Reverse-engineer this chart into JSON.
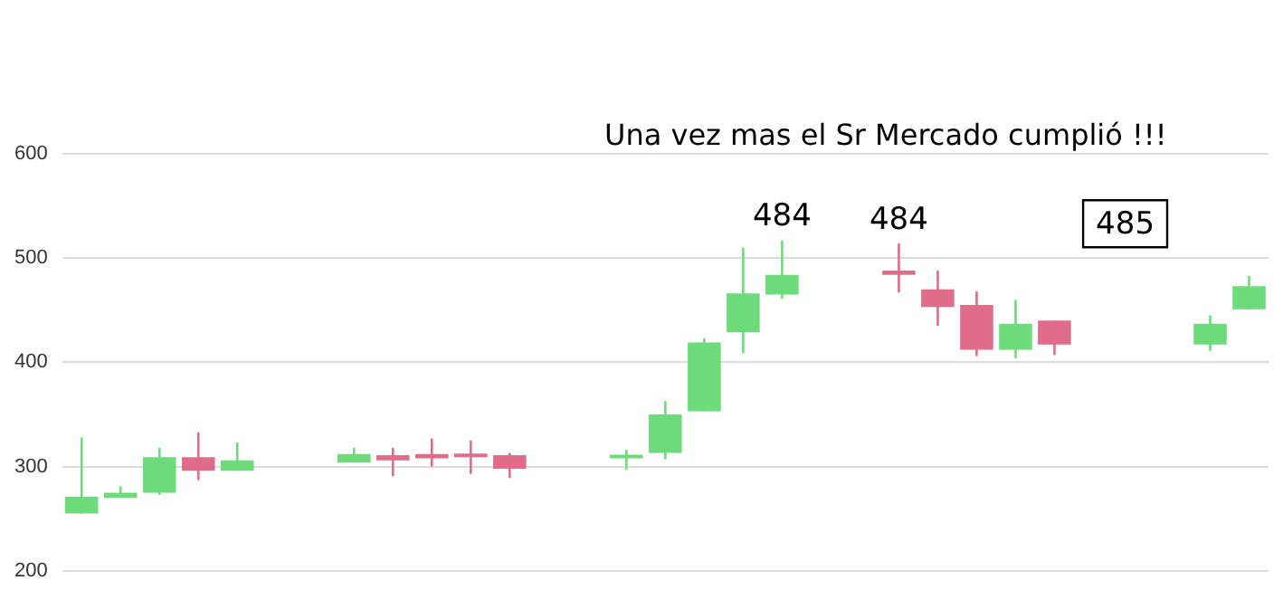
{
  "chart_data": {
    "type": "candlestick",
    "title": "Una vez mas el Sr Mercado cumplió !!!",
    "categories": [
      null,
      null,
      null,
      null,
      null,
      null,
      null,
      null,
      null,
      null,
      null,
      null,
      null,
      null,
      null,
      null,
      null,
      null,
      null,
      null,
      null,
      null,
      null,
      null,
      null,
      null,
      null,
      null,
      null,
      null,
      null
    ],
    "ohlc": [
      [
        255,
        328,
        255,
        271
      ],
      [
        270,
        281,
        270,
        275
      ],
      [
        275,
        318,
        273,
        309
      ],
      [
        309,
        333,
        287,
        296
      ],
      [
        296,
        323,
        296,
        306
      ],
      null,
      null,
      [
        304,
        318,
        304,
        312
      ],
      [
        311,
        318,
        291,
        306
      ],
      [
        312,
        327,
        300,
        308
      ],
      [
        312,
        325,
        293,
        309
      ],
      [
        311,
        313,
        289,
        298
      ],
      null,
      null,
      [
        308,
        316,
        297,
        311
      ],
      [
        313,
        363,
        307,
        350
      ],
      [
        353,
        423,
        353,
        419
      ],
      [
        429,
        510,
        409,
        466
      ],
      [
        465,
        517,
        461,
        484
      ],
      null,
      null,
      [
        488,
        514,
        467,
        484
      ],
      [
        470,
        488,
        435,
        453
      ],
      [
        455,
        468,
        406,
        412
      ],
      [
        412,
        460,
        404,
        437
      ],
      [
        440,
        440,
        407,
        417
      ],
      null,
      null,
      null,
      [
        417,
        445,
        411,
        437
      ],
      [
        451,
        483,
        451,
        473
      ]
    ],
    "colors": [
      "#6ddb7c",
      "#6ddb7c",
      "#6ddb7c",
      "#e06c8a",
      "#6ddb7c",
      null,
      null,
      "#6ddb7c",
      "#e06c8a",
      "#e06c8a",
      "#e06c8a",
      "#e06c8a",
      null,
      null,
      "#6ddb7c",
      "#6ddb7c",
      "#6ddb7c",
      "#6ddb7c",
      "#6ddb7c",
      null,
      null,
      "#e06c8a",
      "#e06c8a",
      "#e06c8a",
      "#6ddb7c",
      "#e06c8a",
      null,
      null,
      null,
      "#6ddb7c",
      "#6ddb7c"
    ],
    "value_labels": [
      null,
      null,
      null,
      null,
      null,
      null,
      null,
      null,
      null,
      null,
      null,
      null,
      null,
      null,
      null,
      null,
      null,
      null,
      "484",
      null,
      null,
      "484",
      null,
      null,
      null,
      null,
      null,
      null,
      null,
      null,
      null
    ],
    "annotations": [
      "485"
    ],
    "ylim": [
      200,
      600
    ],
    "yticks": [
      200,
      300,
      400,
      500,
      600
    ],
    "grid": "y",
    "tick_labels": "y",
    "legend": false
  }
}
